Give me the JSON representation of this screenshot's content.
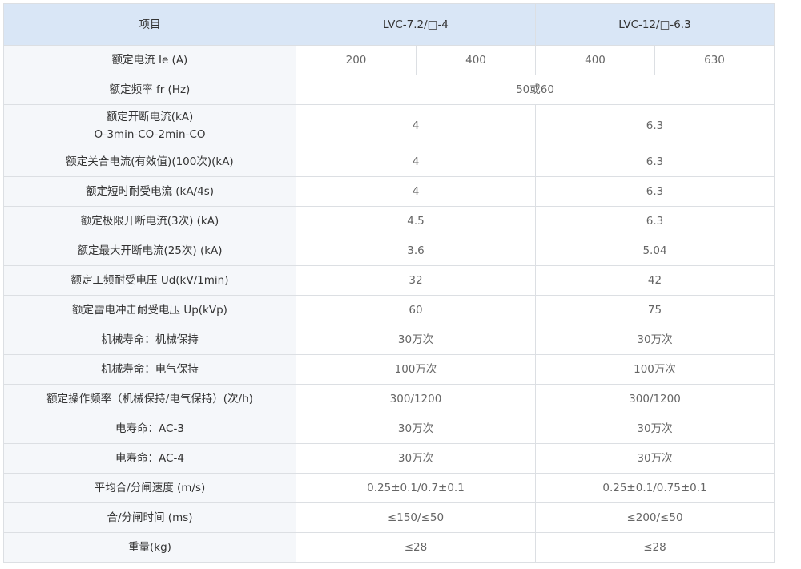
{
  "header": {
    "item": "项目",
    "model_a": "LVC-7.2/□-4",
    "model_b": "LVC-12/□-6.3"
  },
  "rated_current": {
    "label": "额定电流 Ie (A)",
    "values": [
      "200",
      "400",
      "400",
      "630"
    ]
  },
  "rated_frequency": {
    "label": "额定频率 fr (Hz)",
    "value": "50或60"
  },
  "rows": [
    {
      "label": "额定开断电流(kA)",
      "label2": "O-3min-CO-2min-CO",
      "a": "4",
      "b": "6.3"
    },
    {
      "label": "额定关合电流(有效值)(100次)(kA)",
      "a": "4",
      "b": "6.3"
    },
    {
      "label": "额定短时耐受电流 (kA/4s)",
      "a": "4",
      "b": "6.3"
    },
    {
      "label": "额定极限开断电流(3次) (kA)",
      "a": "4.5",
      "b": "6.3"
    },
    {
      "label": "额定最大开断电流(25次) (kA)",
      "a": "3.6",
      "b": "5.04"
    },
    {
      "label": "额定工频耐受电压 Ud(kV/1min)",
      "a": "32",
      "b": "42"
    },
    {
      "label": "额定雷电冲击耐受电压 Up(kVp)",
      "a": "60",
      "b": "75"
    },
    {
      "label": "机械寿命：机械保持",
      "a": "30万次",
      "b": "30万次"
    },
    {
      "label": "机械寿命：电气保持",
      "a": "100万次",
      "b": "100万次"
    },
    {
      "label": "额定操作频率（机械保持/电气保持）(次/h)",
      "a": "300/1200",
      "b": "300/1200"
    },
    {
      "label": "电寿命：AC-3",
      "a": "30万次",
      "b": "30万次"
    },
    {
      "label": "电寿命：AC-4",
      "a": "30万次",
      "b": "30万次"
    },
    {
      "label": "平均合/分闸速度 (m/s)",
      "a": "0.25±0.1/0.7±0.1",
      "b": "0.25±0.1/0.75±0.1"
    },
    {
      "label": "合/分闸时间 (ms)",
      "a": "≤150/≤50",
      "b": "≤200/≤50"
    },
    {
      "label": "重量(kg)",
      "a": "≤28",
      "b": "≤28"
    }
  ]
}
